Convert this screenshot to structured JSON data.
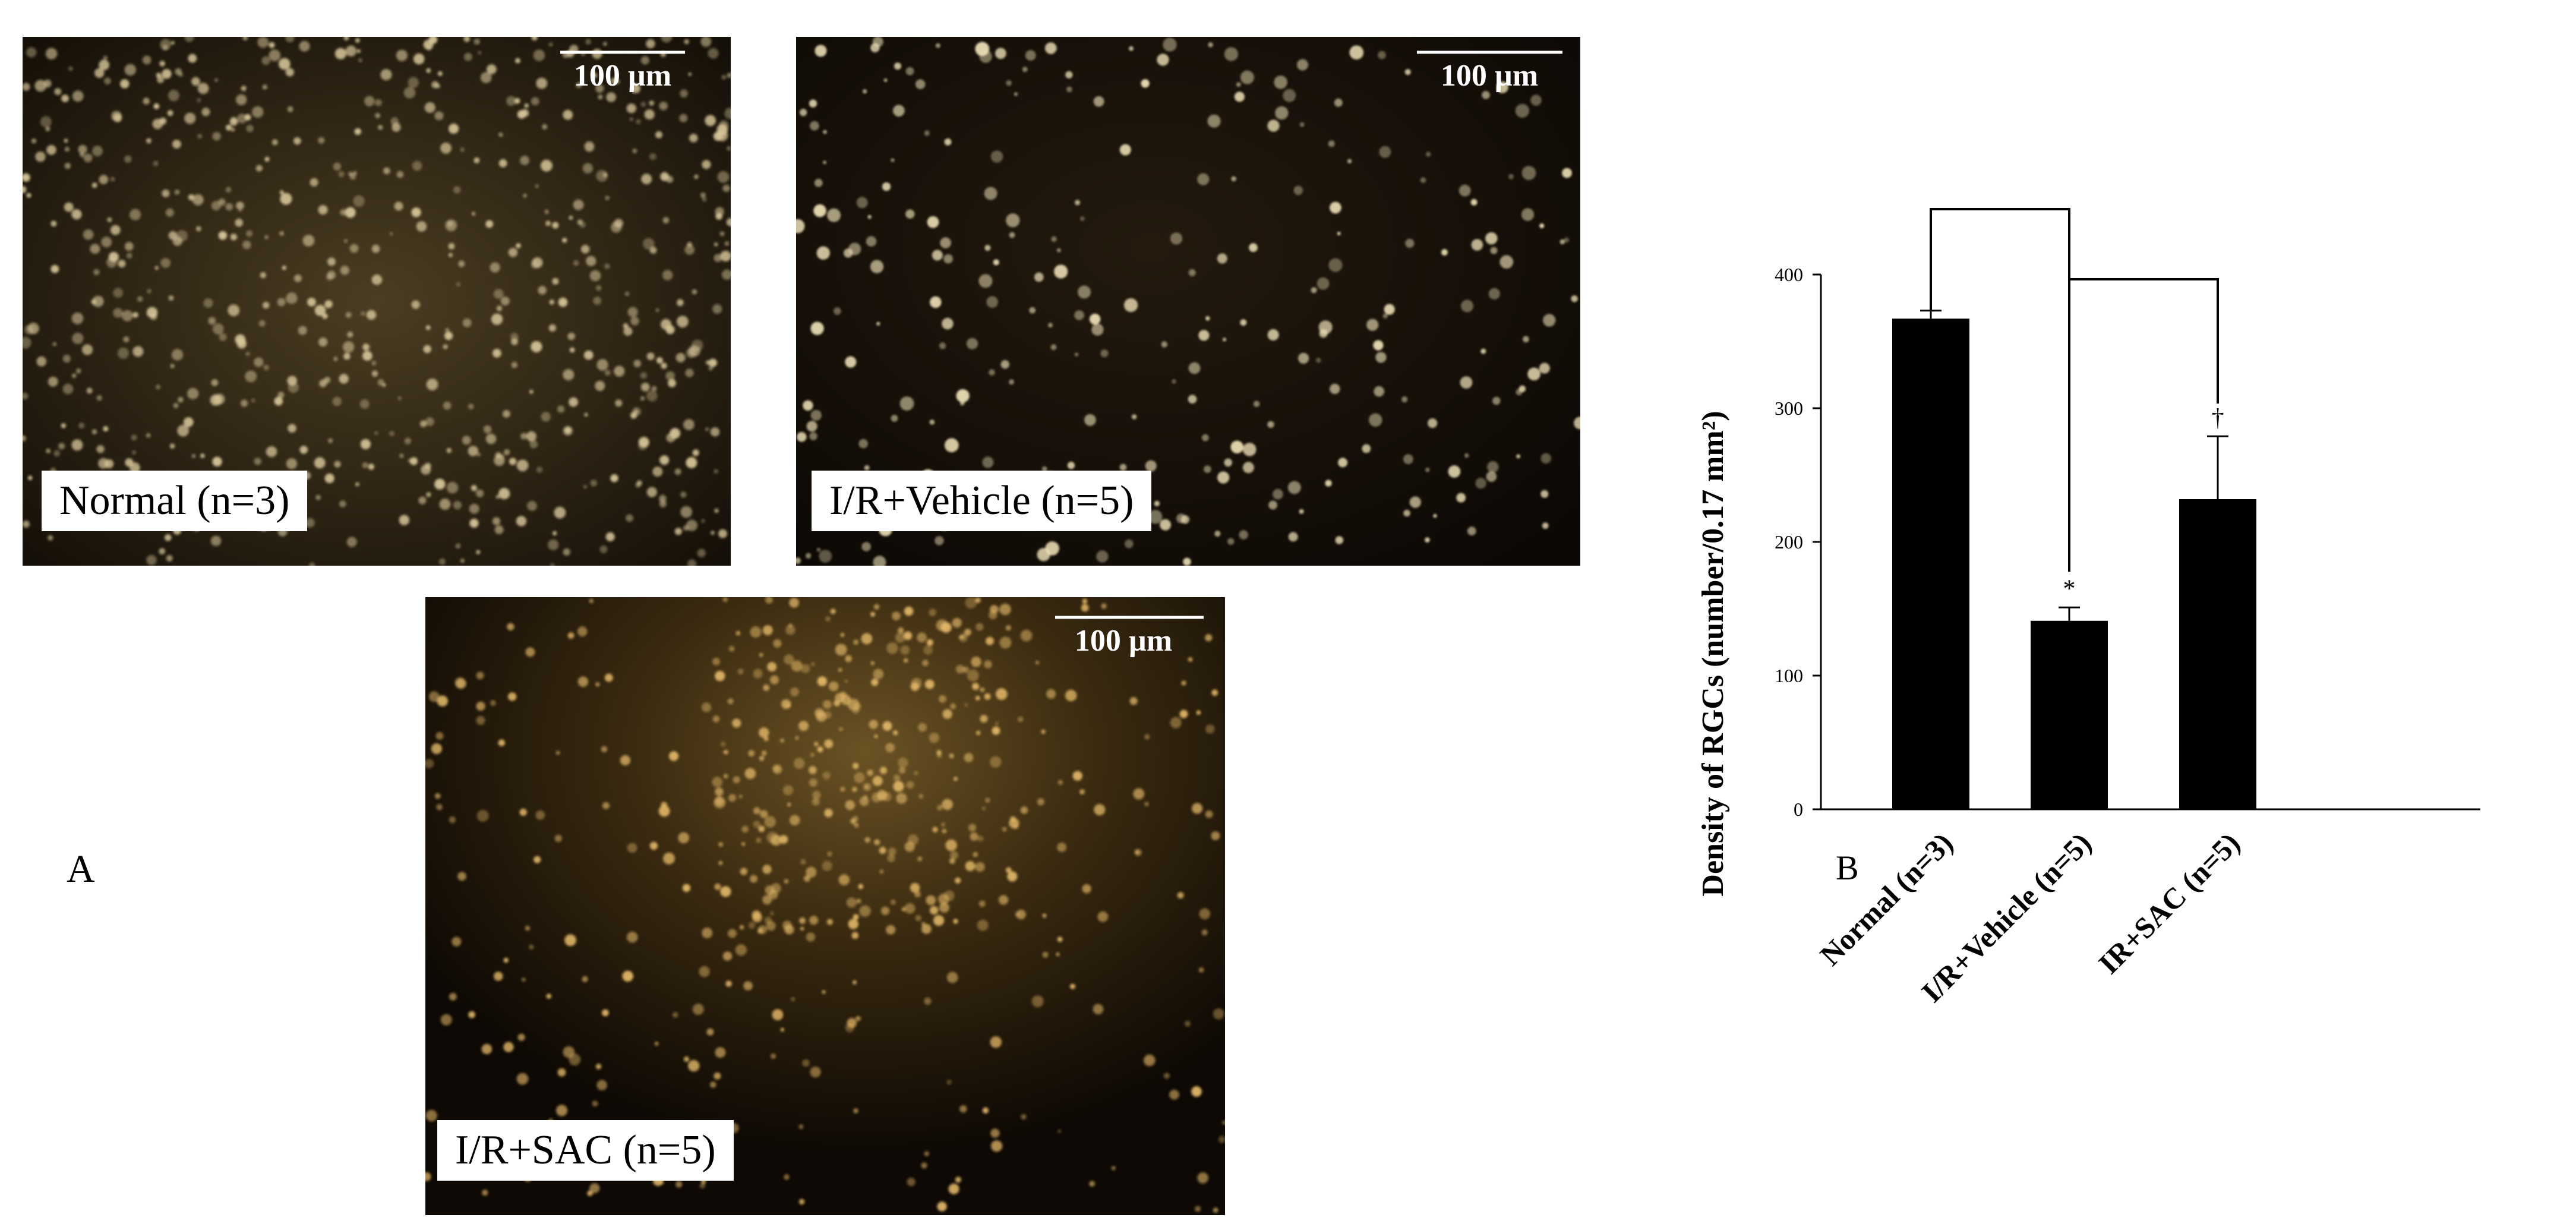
{
  "figure": {
    "panel_a_letter": "A",
    "panel_b_letter": "B",
    "scale_bar_text": "100 µm",
    "images": [
      {
        "label": "Normal (n=3)",
        "tone": "#d8c79a",
        "density": "dense"
      },
      {
        "label": "I/R+Vehicle (n=5)",
        "tone": "#efe2b8",
        "density": "sparse"
      },
      {
        "label": "I/R+SAC (n=5)",
        "tone": "#e2b768",
        "density": "medium"
      }
    ]
  },
  "chart_data": {
    "type": "bar",
    "categories": [
      "Normal (n=3)",
      "I/R+Vehicle (n=5)",
      "IR+SAC (n=5)"
    ],
    "values": [
      367,
      141,
      232
    ],
    "errors": [
      6,
      10,
      47
    ],
    "ylabel": "Density of RGCs (number/0.17 mm²)",
    "ylim": [
      0,
      400
    ],
    "yticks": [
      0,
      100,
      200,
      300,
      400
    ],
    "bar_color": "#000000",
    "significance": [
      "",
      "*",
      "†"
    ]
  }
}
